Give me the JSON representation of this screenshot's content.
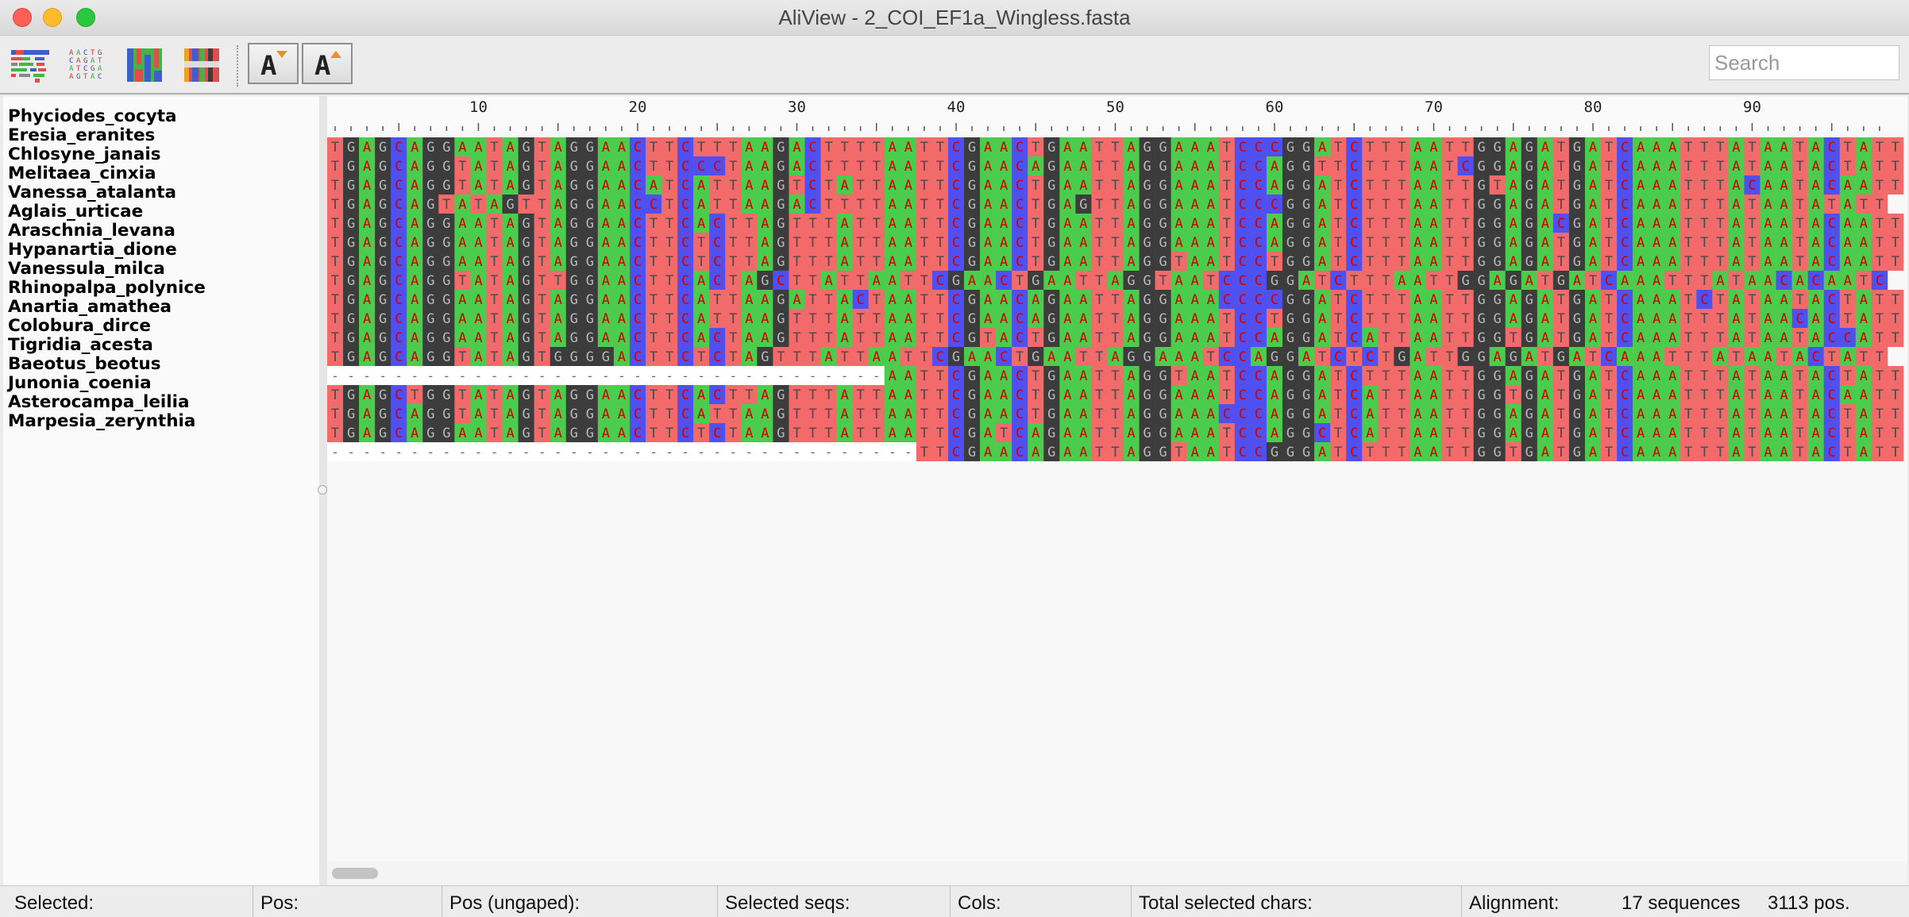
{
  "window": {
    "title": "AliView - 2_COI_EF1a_Wingless.fasta"
  },
  "toolbar": {
    "icons": [
      "alignment-overview-icon",
      "alignment-text-icon",
      "color-blocks-icon",
      "color-bars-icon"
    ],
    "font_decrease_icon": "font-decrease-icon",
    "font_increase_icon": "font-increase-icon",
    "search_placeholder": "Search"
  },
  "alignment": {
    "ruler_labels": [
      "10",
      "20",
      "30",
      "40",
      "50",
      "60",
      "70",
      "80",
      "90"
    ],
    "colors": {
      "A": "#4ccc4c",
      "C": "#5050f0",
      "G": "#3c3c3c",
      "T": "#f26a6a",
      "N": "#a0a0a0",
      "gap": "#ffffff"
    },
    "text_colors": {
      "A": "#d00000",
      "C": "#d00000",
      "G": "#b8b8b8",
      "T": "#4a4a4a",
      "N": "#111111"
    },
    "sequences": [
      {
        "name": "Phyciodes_cocyta",
        "seq": "TGAGCAGGAATAGTAGGAACTTCTTTAAGACTTTTAATTCGAACTGAATTAGGAAATCCCGGATCTTTAATTGGAGATGATCAAATTTATAATACTATT"
      },
      {
        "name": "Eresia_eranites",
        "seq": "TGAGCAGGTATAGTAGGAACTTCCCTAAGACTTTTAATTCGAACAGAATTAGGAAATCCAGGTTCTTTAATCGGAGATGATCAAATTTATAATACTATT"
      },
      {
        "name": "Chlosyne_janais",
        "seq": "TGAGCAGGTATAGTAGGAACATCATTAAGTCTATTAATTCGAACTGAATTAGGAAATCCAGGATCTTTAATTGTAGATGATCAAATTTACAATACAATT"
      },
      {
        "name": "Melitaea_cinxia",
        "seq": "TGAGCAGTATAGTTAGGAACCTCATTAAGACTTTTAATTCGAACTGAGTTAGGAAATCCCGGATCTTTAATTGGAGATGATCAAATTTATAATATATT"
      },
      {
        "name": "Vanessa_atalanta",
        "seq": "TGAGCAGGAATAGTAGGAACTTCACTTAGTTTATTAATTCGAACTGAATTAGGAAATCCAGGATCTTTAATTGGAGACGATCAAATTTATAATACAATT"
      },
      {
        "name": "Aglais_urticae",
        "seq": "TGAGCAGGAATAGTAGGAACTTCTCTTAGTTTATTAATTCGAACTGAATTAGGAAATCCAGGATCTTTAATTGGAGATGATCAAATTTATAATACAATT"
      },
      {
        "name": "Araschnia_levana",
        "seq": "TGAGCAGGAATAGTAGGAACTTCTCTTAGTTTATTAATTCGAACTGAATTAGGTAATCCTGGATCTTTAATTGGAGATGATCAAATTTATAATACAATT"
      },
      {
        "name": "Hypanartia_dione",
        "seq": "TGAGCAGGTATAGTTGGAACTTCACTAGCTTATTAATTCGAACTGAATTAGGTAATCCCGGATCTTTAATTGGAGATGATCAAATTTATAACACAATC"
      },
      {
        "name": "Vanessula_milca",
        "seq": "TGAGCAGGAATAGTAGGAACTTCATTAAGATTACTAATTCGAACAGAATTAGGAAACCCCGGATCTTTAATTGGAGATGATCAAATCTATAATACTATT"
      },
      {
        "name": "Rhinopalpa_polynice",
        "seq": "TGAGCAGGAATAGTAGGAACTTCATTAAGTTTATTAATTCGAACAGAATTAGGAAATCCTGGATCTTTAATTGGAGATGATCAAATTTATAACACTATT"
      },
      {
        "name": "Anartia_amathea",
        "seq": "TGAGCAGGAATAGTAGGAACTTCACTAAGTTTATTAATTCGTACTGAATTAGGAAATCCAGGATCATTAATTGGTGATGATCAAATTTATAATACCATT"
      },
      {
        "name": "Colobura_dirce",
        "seq": "TGAGCAGGTATAGTGGGGACTTCTCTAGTTTATTAATTCGAACTGAATTAGGAAATCCAGGATCTCTGATTGGAGATGATCAAATTTATAATACTATT"
      },
      {
        "name": "Tigridia_acesta",
        "seq": "-----------------------------------AATTCGAACTGAATTAGGTAATCCAGGATCTTTAATTGGAGATGATCAAATTTATAATACTATT"
      },
      {
        "name": "Baeotus_beotus",
        "seq": "TGAGCTGGTATAGTAGGAACTTCACTTAGTTTATTAATTCGAACTGAATTAGGAAATCCAGGATCATTAATTGGTGATGATCAAATTTATAATACAATT"
      },
      {
        "name": "Junonia_coenia",
        "seq": "TGAGCAGGTATAGTAGGAACTTCATTAAGTTTATTAATTCGAACTGAATTAGGAAACCCAGGATCATTAATTGGAGATGATCAAATTTATAATACTATT"
      },
      {
        "name": "Asterocampa_leilia",
        "seq": "TGAGCAGGAATAGTAGGAACTTCTCTAAGTTTATTAATTCGATCAGAATTAGGAAATCCAGGCTCATTAATTGGAGATGATCAAATTTATAATACTATT"
      },
      {
        "name": "Marpesia_zerynthia",
        "seq": "-------------------------------------TTCGAACAGAATTAGGTAATCCGGGATCTTTAATTGGTGATGATCAAATTTATAATACTATT"
      }
    ]
  },
  "status": {
    "selected": "Selected:",
    "pos": "Pos:",
    "pos_ungaped": "Pos (ungaped):",
    "selected_seqs": "Selected seqs:",
    "cols": "Cols:",
    "total_selected_chars": "Total selected chars:",
    "alignment_label": "Alignment:",
    "sequences_count": "17 sequences",
    "positions": "3113 pos."
  }
}
